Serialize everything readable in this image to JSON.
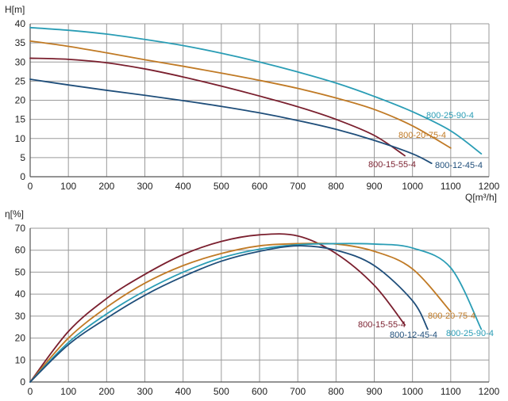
{
  "chart_data": [
    {
      "type": "line",
      "ylabel": "H[m]",
      "xlabel": "Q[m³/h]",
      "xlim": [
        0,
        1200
      ],
      "ylim": [
        0,
        40
      ],
      "xticks": [
        "0",
        "100",
        "200",
        "300",
        "400",
        "500",
        "600",
        "700",
        "800",
        "900",
        "1000",
        "1100",
        "1200"
      ],
      "yticks": [
        "0",
        "5",
        "10",
        "15",
        "20",
        "25",
        "30",
        "35",
        "40"
      ],
      "grid": true,
      "series": [
        {
          "name": "800-25-90-4",
          "color": "#2a9db5",
          "x": [
            0,
            100,
            200,
            300,
            400,
            500,
            600,
            700,
            800,
            900,
            1000,
            1100,
            1180
          ],
          "y": [
            39,
            38.3,
            37.3,
            35.9,
            34.3,
            32.3,
            30,
            27.4,
            24.5,
            21,
            17,
            12,
            6
          ]
        },
        {
          "name": "800-20-75-4",
          "color": "#c07a25",
          "x": [
            0,
            100,
            200,
            300,
            400,
            500,
            600,
            700,
            800,
            900,
            1000,
            1100
          ],
          "y": [
            35.5,
            34.1,
            32.4,
            30.6,
            28.9,
            27.1,
            25.2,
            23.1,
            20.6,
            17.6,
            13.3,
            7.5
          ]
        },
        {
          "name": "800-15-55-4",
          "color": "#7a1f2e",
          "x": [
            0,
            100,
            200,
            300,
            400,
            500,
            600,
            700,
            800,
            900,
            980
          ],
          "y": [
            31,
            30.7,
            29.8,
            28.2,
            26.1,
            23.7,
            21.1,
            18.3,
            15,
            10.8,
            5.5
          ]
        },
        {
          "name": "800-12-45-4",
          "color": "#1f4e7a",
          "x": [
            0,
            100,
            200,
            300,
            400,
            500,
            600,
            700,
            800,
            900,
            1000,
            1050
          ],
          "y": [
            25.5,
            24,
            22.6,
            21.3,
            19.9,
            18.4,
            16.7,
            14.7,
            12.4,
            9.5,
            6,
            3.5
          ]
        }
      ],
      "labels": [
        {
          "series": "800-25-90-4",
          "text": "800-25-90-4"
        },
        {
          "series": "800-20-75-4",
          "text": "800-20-75-4"
        },
        {
          "series": "800-15-55-4",
          "text": "800-15-55-4"
        },
        {
          "series": "800-12-45-4",
          "text": "800-12-45-4"
        }
      ]
    },
    {
      "type": "line",
      "ylabel": "η[%]",
      "xlabel": "",
      "xlim": [
        0,
        1200
      ],
      "ylim": [
        0,
        70
      ],
      "xticks": [
        "0",
        "100",
        "200",
        "300",
        "400",
        "500",
        "600",
        "700",
        "800",
        "900",
        "1000",
        "1100",
        "1200"
      ],
      "yticks": [
        "0",
        "10",
        "20",
        "30",
        "40",
        "50",
        "60",
        "70"
      ],
      "grid": true,
      "series": [
        {
          "name": "800-15-55-4",
          "color": "#7a1f2e",
          "x": [
            0,
            100,
            200,
            300,
            400,
            500,
            600,
            700,
            800,
            900,
            980
          ],
          "y": [
            0,
            23,
            38,
            49,
            58,
            64,
            67,
            66.5,
            58.5,
            44,
            26
          ]
        },
        {
          "name": "800-20-75-4",
          "color": "#c07a25",
          "x": [
            0,
            100,
            200,
            300,
            400,
            500,
            600,
            700,
            800,
            900,
            1000,
            1100
          ],
          "y": [
            0,
            20,
            34,
            45,
            53,
            58.5,
            62,
            63,
            62.8,
            59.5,
            51.5,
            32
          ]
        },
        {
          "name": "800-25-90-4",
          "color": "#2a9db5",
          "x": [
            0,
            100,
            200,
            300,
            400,
            500,
            600,
            700,
            800,
            900,
            1000,
            1100,
            1180
          ],
          "y": [
            0,
            18,
            31,
            41.5,
            50,
            56.5,
            60.5,
            62.5,
            63,
            62.8,
            61,
            52,
            24
          ]
        },
        {
          "name": "800-12-45-4",
          "color": "#1f4e7a",
          "x": [
            0,
            100,
            200,
            300,
            400,
            500,
            600,
            700,
            800,
            900,
            1000,
            1040
          ],
          "y": [
            0,
            17,
            29,
            39.5,
            48,
            55,
            59.5,
            62,
            60,
            53,
            37,
            24
          ]
        }
      ],
      "labels": [
        {
          "series": "800-15-55-4",
          "text": "800-15-55-4"
        },
        {
          "series": "800-20-75-4",
          "text": "800-20-75-4"
        },
        {
          "series": "800-12-45-4",
          "text": "800-12-45-4"
        },
        {
          "series": "800-25-90-4",
          "text": "800-25-90-4"
        }
      ]
    }
  ]
}
